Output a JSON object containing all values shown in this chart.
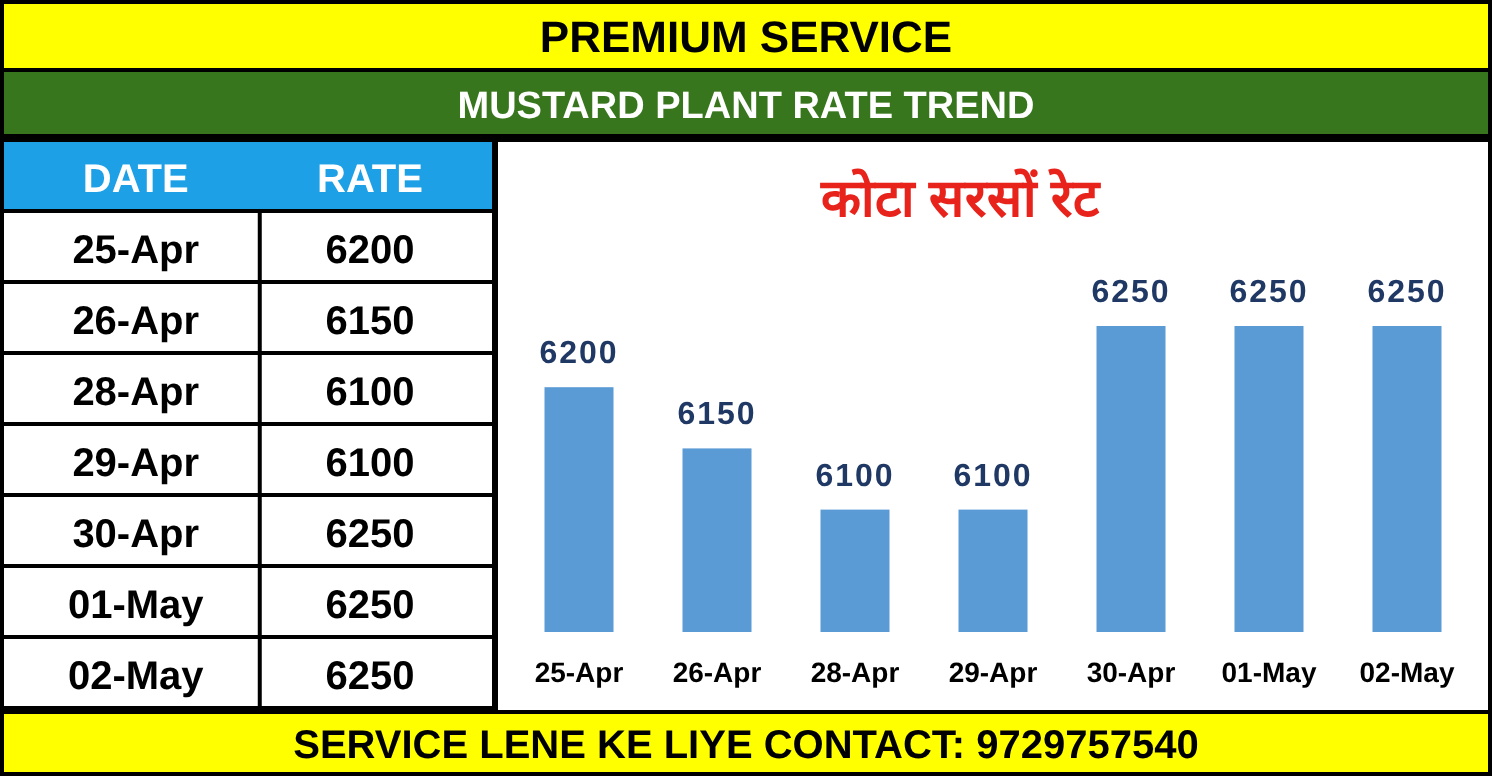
{
  "chart_data": [
    {
      "type": "other",
      "annotations": [
        "DATE",
        "RATE"
      ],
      "categories": [
        "25-Apr",
        "26-Apr",
        "28-Apr",
        "29-Apr",
        "30-Apr",
        "01-May",
        "02-May"
      ],
      "values": [
        6200,
        6150,
        6100,
        6100,
        6250,
        6250,
        6250
      ],
      "data_labels": true
    },
    {
      "type": "bar",
      "title": "कोटा सरसों रेट",
      "annotations": [
        "PREMIUM SERVICE",
        "MUSTARD PLANT RATE TREND",
        "SERVICE LENE KE LIYE CONTACT: 9729757540"
      ],
      "categories": [
        "25-Apr",
        "26-Apr",
        "28-Apr",
        "29-Apr",
        "30-Apr",
        "01-May",
        "02-May"
      ],
      "values": [
        6200,
        6150,
        6100,
        6100,
        6250,
        6250,
        6250
      ],
      "color": "#5b9bd5",
      "ylim": [
        6000,
        6250
      ],
      "tick_labels": "x",
      "data_labels": true
    }
  ]
}
